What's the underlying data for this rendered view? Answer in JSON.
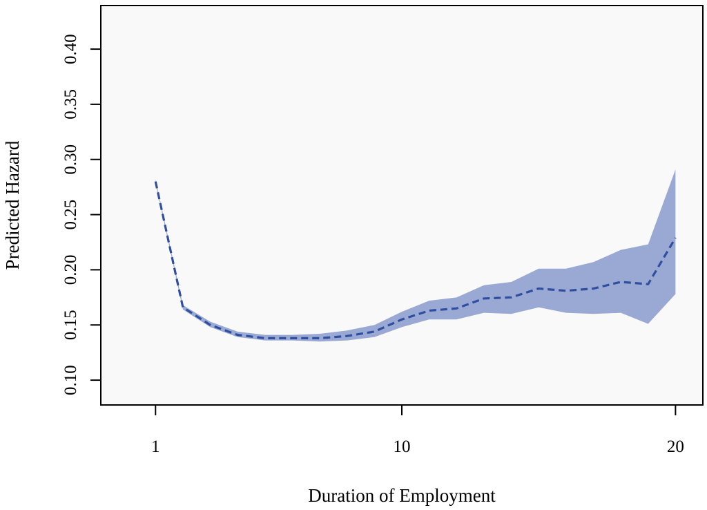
{
  "chart_data": {
    "type": "line",
    "title": "",
    "xlabel": "Duration of Employment",
    "ylabel": "Predicted Hazard",
    "xlim": [
      -1,
      21
    ],
    "ylim": [
      0.0775,
      0.4395
    ],
    "x_ticks": [
      1,
      10,
      20
    ],
    "x_tick_labels": [
      "1",
      "10",
      "20"
    ],
    "y_ticks": [
      0.1,
      0.15,
      0.2,
      0.25,
      0.3,
      0.35,
      0.4
    ],
    "y_tick_labels": [
      "0.10",
      "0.15",
      "0.20",
      "0.25",
      "0.30",
      "0.35",
      "0.40"
    ],
    "grid": false,
    "legend": "none",
    "plot_background": "#f9f9f9",
    "band_color": "#9aa9d3",
    "line_color": "#2f4ea0",
    "series": [
      {
        "x": [
          1,
          2,
          3,
          4,
          5,
          6,
          7,
          8,
          9,
          10,
          11,
          12,
          13,
          14,
          15,
          16,
          17,
          18,
          19,
          20
        ],
        "values": [
          0.28,
          0.166,
          0.15,
          0.141,
          0.138,
          0.138,
          0.138,
          0.14,
          0.144,
          0.155,
          0.163,
          0.165,
          0.174,
          0.175,
          0.183,
          0.181,
          0.183,
          0.189,
          0.187,
          0.229
        ],
        "lower": [
          0.279,
          0.164,
          0.148,
          0.139,
          0.136,
          0.136,
          0.135,
          0.136,
          0.139,
          0.148,
          0.155,
          0.155,
          0.161,
          0.16,
          0.166,
          0.161,
          0.16,
          0.161,
          0.151,
          0.178
        ],
        "upper": [
          0.282,
          0.168,
          0.153,
          0.144,
          0.141,
          0.141,
          0.142,
          0.145,
          0.15,
          0.162,
          0.172,
          0.175,
          0.186,
          0.189,
          0.201,
          0.201,
          0.207,
          0.218,
          0.223,
          0.291
        ]
      }
    ]
  }
}
